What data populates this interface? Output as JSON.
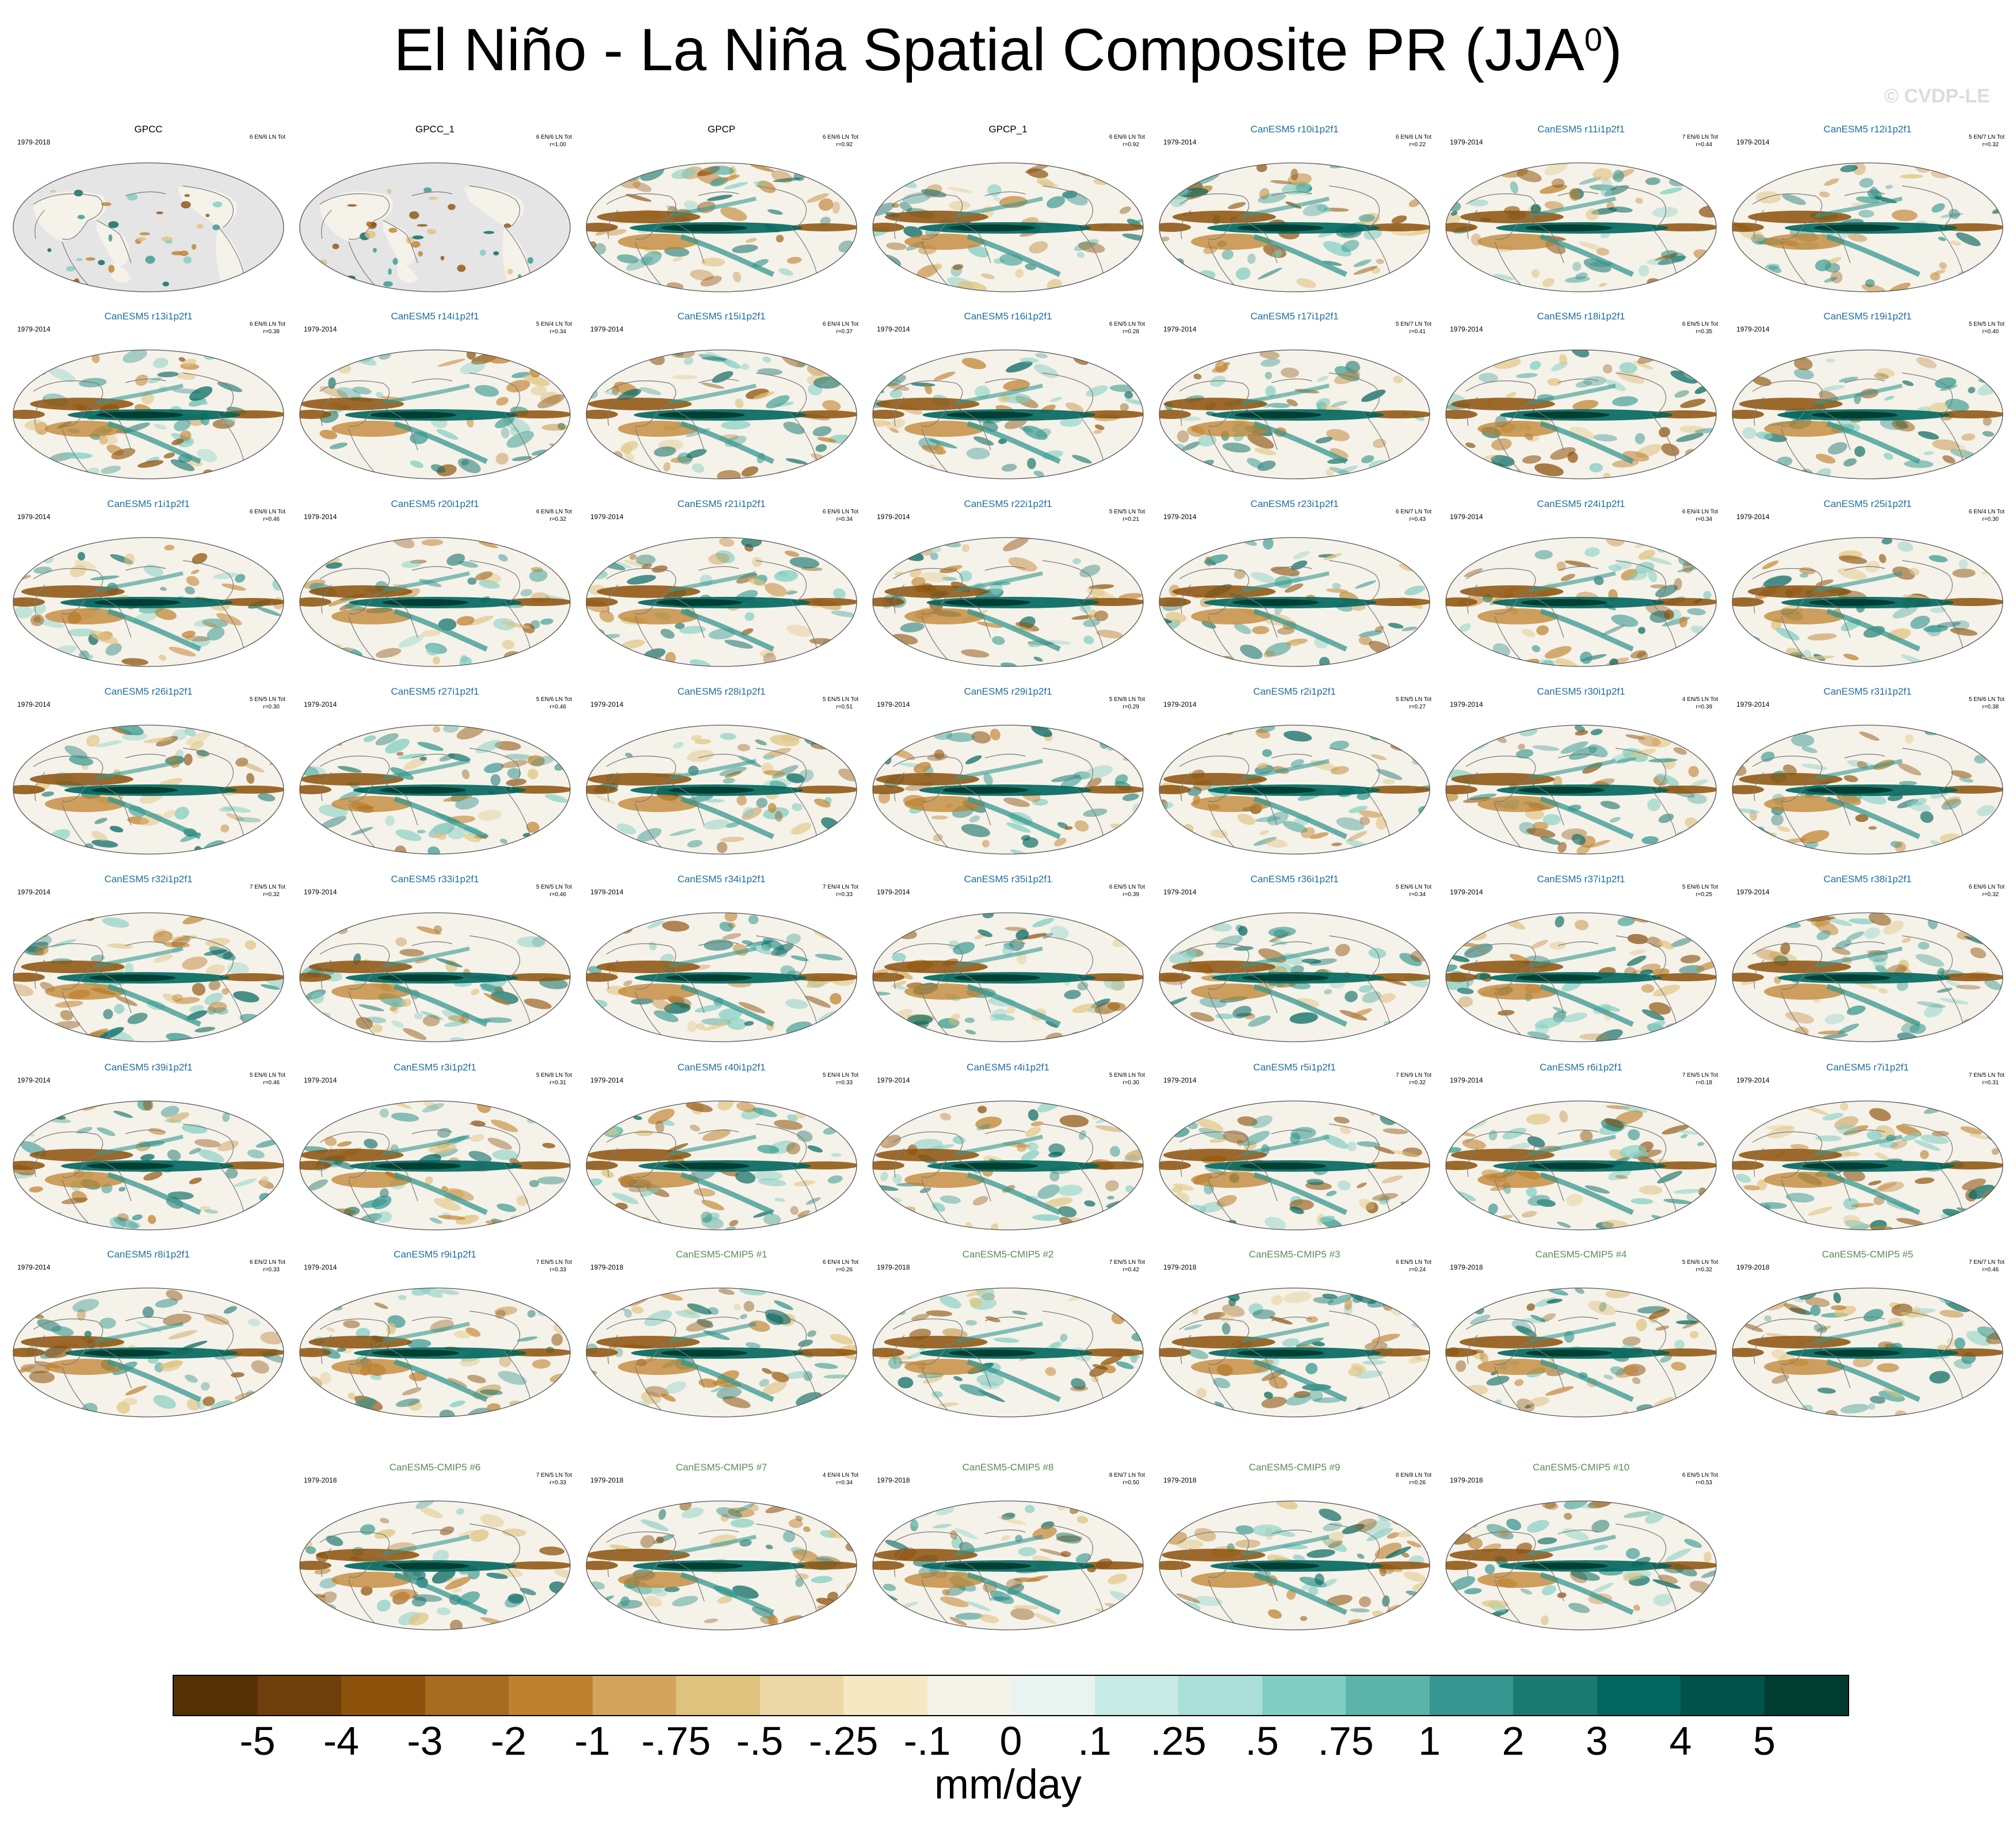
{
  "header": {
    "title": "El Niño - La Niña Spatial Composite PR (JJA",
    "title_sup": "0",
    "title_close": ")",
    "watermark": "© CVDP-LE"
  },
  "chart_data": {
    "type": "heatmap",
    "title": "El Niño - La Niña Spatial Composite PR (JJA0)",
    "units": "mm/day",
    "colorbar": {
      "labels": [
        "-5",
        "-4",
        "-3",
        "-2",
        "-1",
        "-.75",
        "-.5",
        "-.25",
        "-.1",
        "0",
        ".1",
        ".25",
        ".5",
        ".75",
        "1",
        "2",
        "3",
        "4",
        "5"
      ],
      "colors": [
        "#543005",
        "#6e3f0b",
        "#8c510a",
        "#a76b1f",
        "#bf812d",
        "#d2a45c",
        "#dfc27d",
        "#ecd8a6",
        "#f6e8c3",
        "#f5f2ea",
        "#e9f3f0",
        "#c7eae5",
        "#a9dfd7",
        "#80cdc1",
        "#5bb3a9",
        "#35978f",
        "#1a7a72",
        "#01665e",
        "#01524a",
        "#003c30"
      ]
    },
    "panels": [
      {
        "title": "GPCC",
        "period": "1979-2018",
        "counts": "6 EN/6 LN Tot",
        "corr": "",
        "kind": "obs",
        "land_only": true
      },
      {
        "title": "GPCC_1",
        "period": "",
        "counts": "6 EN/6 LN Tot",
        "corr": "r=1.00",
        "kind": "obs",
        "land_only": true
      },
      {
        "title": "GPCP",
        "period": "",
        "counts": "6 EN/6 LN Tot",
        "corr": "r=0.92",
        "kind": "obs",
        "land_only": false
      },
      {
        "title": "GPCP_1",
        "period": "",
        "counts": "6 EN/6 LN Tot",
        "corr": "r=0.92",
        "kind": "obs",
        "land_only": false
      },
      {
        "title": "CanESM5 r10i1p2f1",
        "period": "1979-2014",
        "counts": "6 EN/6 LN Tot",
        "corr": "r=0.22",
        "kind": "model"
      },
      {
        "title": "CanESM5 r11i1p2f1",
        "period": "1979-2014",
        "counts": "7 EN/6 LN Tot",
        "corr": "r=0.44",
        "kind": "model"
      },
      {
        "title": "CanESM5 r12i1p2f1",
        "period": "1979-2014",
        "counts": "5 EN/7 LN Tot",
        "corr": "r=0.32",
        "kind": "model"
      },
      {
        "title": "CanESM5 r13i1p2f1",
        "period": "1979-2014",
        "counts": "6 EN/6 LN Tot",
        "corr": "r=0.38",
        "kind": "model"
      },
      {
        "title": "CanESM5 r14i1p2f1",
        "period": "1979-2014",
        "counts": "5 EN/4 LN Tot",
        "corr": "r=0.34",
        "kind": "model"
      },
      {
        "title": "CanESM5 r15i1p2f1",
        "period": "1979-2014",
        "counts": "6 EN/4 LN Tot",
        "corr": "r=0.37",
        "kind": "model"
      },
      {
        "title": "CanESM5 r16i1p2f1",
        "period": "1979-2014",
        "counts": "6 EN/5 LN Tot",
        "corr": "r=0.28",
        "kind": "model"
      },
      {
        "title": "CanESM5 r17i1p2f1",
        "period": "1979-2014",
        "counts": "5 EN/7 LN Tot",
        "corr": "r=0.41",
        "kind": "model"
      },
      {
        "title": "CanESM5 r18i1p2f1",
        "period": "1979-2014",
        "counts": "6 EN/5 LN Tot",
        "corr": "r=0.35",
        "kind": "model"
      },
      {
        "title": "CanESM5 r19i1p2f1",
        "period": "1979-2014",
        "counts": "5 EN/5 LN Tot",
        "corr": "r=0.40",
        "kind": "model"
      },
      {
        "title": "CanESM5 r1i1p2f1",
        "period": "1979-2014",
        "counts": "6 EN/6 LN Tot",
        "corr": "r=0.46",
        "kind": "model"
      },
      {
        "title": "CanESM5 r20i1p2f1",
        "period": "1979-2014",
        "counts": "6 EN/8 LN Tot",
        "corr": "r=0.32",
        "kind": "model"
      },
      {
        "title": "CanESM5 r21i1p2f1",
        "period": "1979-2014",
        "counts": "6 EN/6 LN Tot",
        "corr": "r=0.34",
        "kind": "model"
      },
      {
        "title": "CanESM5 r22i1p2f1",
        "period": "1979-2014",
        "counts": "5 EN/5 LN Tot",
        "corr": "r=0.21",
        "kind": "model"
      },
      {
        "title": "CanESM5 r23i1p2f1",
        "period": "1979-2014",
        "counts": "6 EN/7 LN Tot",
        "corr": "r=0.43",
        "kind": "model"
      },
      {
        "title": "CanESM5 r24i1p2f1",
        "period": "1979-2014",
        "counts": "6 EN/4 LN Tot",
        "corr": "r=0.34",
        "kind": "model"
      },
      {
        "title": "CanESM5 r25i1p2f1",
        "period": "1979-2014",
        "counts": "6 EN/4 LN Tot",
        "corr": "r=0.30",
        "kind": "model"
      },
      {
        "title": "CanESM5 r26i1p2f1",
        "period": "1979-2014",
        "counts": "5 EN/5 LN Tot",
        "corr": "r=0.30",
        "kind": "model"
      },
      {
        "title": "CanESM5 r27i1p2f1",
        "period": "1979-2014",
        "counts": "5 EN/6 LN Tot",
        "corr": "r=0.46",
        "kind": "model"
      },
      {
        "title": "CanESM5 r28i1p2f1",
        "period": "1979-2014",
        "counts": "5 EN/5 LN Tot",
        "corr": "r=0.51",
        "kind": "model"
      },
      {
        "title": "CanESM5 r29i1p2f1",
        "period": "1979-2014",
        "counts": "5 EN/8 LN Tot",
        "corr": "r=0.29",
        "kind": "model"
      },
      {
        "title": "CanESM5 r2i1p2f1",
        "period": "1979-2014",
        "counts": "5 EN/5 LN Tot",
        "corr": "r=0.27",
        "kind": "model"
      },
      {
        "title": "CanESM5 r30i1p2f1",
        "period": "1979-2014",
        "counts": "4 EN/5 LN Tot",
        "corr": "r=0.39",
        "kind": "model"
      },
      {
        "title": "CanESM5 r31i1p2f1",
        "period": "1979-2014",
        "counts": "5 EN/6 LN Tot",
        "corr": "r=0.38",
        "kind": "model"
      },
      {
        "title": "CanESM5 r32i1p2f1",
        "period": "1979-2014",
        "counts": "7 EN/5 LN Tot",
        "corr": "r=0.32",
        "kind": "model"
      },
      {
        "title": "CanESM5 r33i1p2f1",
        "period": "1979-2014",
        "counts": "5 EN/5 LN Tot",
        "corr": "r=0.46",
        "kind": "model"
      },
      {
        "title": "CanESM5 r34i1p2f1",
        "period": "1979-2014",
        "counts": "7 EN/4 LN Tot",
        "corr": "r=0.33",
        "kind": "model"
      },
      {
        "title": "CanESM5 r35i1p2f1",
        "period": "1979-2014",
        "counts": "6 EN/5 LN Tot",
        "corr": "r=0.39",
        "kind": "model"
      },
      {
        "title": "CanESM5 r36i1p2f1",
        "period": "1979-2014",
        "counts": "5 EN/6 LN Tot",
        "corr": "r=0.34",
        "kind": "model"
      },
      {
        "title": "CanESM5 r37i1p2f1",
        "period": "1979-2014",
        "counts": "5 EN/6 LN Tot",
        "corr": "r=0.25",
        "kind": "model"
      },
      {
        "title": "CanESM5 r38i1p2f1",
        "period": "1979-2014",
        "counts": "6 EN/6 LN Tot",
        "corr": "r=0.32",
        "kind": "model"
      },
      {
        "title": "CanESM5 r39i1p2f1",
        "period": "1979-2014",
        "counts": "5 EN/6 LN Tot",
        "corr": "r=0.46",
        "kind": "model"
      },
      {
        "title": "CanESM5 r3i1p2f1",
        "period": "1979-2014",
        "counts": "5 EN/8 LN Tot",
        "corr": "r=0.31",
        "kind": "model"
      },
      {
        "title": "CanESM5 r40i1p2f1",
        "period": "1979-2014",
        "counts": "5 EN/4 LN Tot",
        "corr": "r=0.33",
        "kind": "model"
      },
      {
        "title": "CanESM5 r4i1p2f1",
        "period": "1979-2014",
        "counts": "5 EN/8 LN Tot",
        "corr": "r=0.30",
        "kind": "model"
      },
      {
        "title": "CanESM5 r5i1p2f1",
        "period": "1979-2014",
        "counts": "7 EN/9 LN Tot",
        "corr": "r=0.32",
        "kind": "model"
      },
      {
        "title": "CanESM5 r6i1p2f1",
        "period": "1979-2014",
        "counts": "7 EN/5 LN Tot",
        "corr": "r=0.18",
        "kind": "model"
      },
      {
        "title": "CanESM5 r7i1p2f1",
        "period": "1979-2014",
        "counts": "7 EN/5 LN Tot",
        "corr": "r=0.31",
        "kind": "model"
      },
      {
        "title": "CanESM5 r8i1p2f1",
        "period": "1979-2014",
        "counts": "6 EN/2 LN Tot",
        "corr": "r=0.33",
        "kind": "model"
      },
      {
        "title": "CanESM5 r9i1p2f1",
        "period": "1979-2014",
        "counts": "7 EN/5 LN Tot",
        "corr": "r=0.33",
        "kind": "model"
      },
      {
        "title": "CanESM5-CMIP5 #1",
        "period": "1979-2018",
        "counts": "6 EN/4 LN Tot",
        "corr": "r=0.26",
        "kind": "cmip5"
      },
      {
        "title": "CanESM5-CMIP5 #2",
        "period": "1979-2018",
        "counts": "7 EN/5 LN Tot",
        "corr": "r=0.42",
        "kind": "cmip5"
      },
      {
        "title": "CanESM5-CMIP5 #3",
        "period": "1979-2018",
        "counts": "6 EN/5 LN Tot",
        "corr": "r=0.24",
        "kind": "cmip5"
      },
      {
        "title": "CanESM5-CMIP5 #4",
        "period": "1979-2018",
        "counts": "5 EN/6 LN Tot",
        "corr": "r=0.32",
        "kind": "cmip5"
      },
      {
        "title": "CanESM5-CMIP5 #5",
        "period": "1979-2018",
        "counts": "7 EN/7 LN Tot",
        "corr": "r=0.46",
        "kind": "cmip5"
      },
      {
        "title": "CanESM5-CMIP5 #6",
        "period": "1979-2018",
        "counts": "7 EN/5 LN Tot",
        "corr": "r=0.33",
        "kind": "cmip5"
      },
      {
        "title": "CanESM5-CMIP5 #7",
        "period": "1979-2018",
        "counts": "4 EN/4 LN Tot",
        "corr": "r=0.34",
        "kind": "cmip5"
      },
      {
        "title": "CanESM5-CMIP5 #8",
        "period": "1979-2018",
        "counts": "8 EN/7 LN Tot",
        "corr": "r=0.50",
        "kind": "cmip5"
      },
      {
        "title": "CanESM5-CMIP5 #9",
        "period": "1979-2018",
        "counts": "8 EN/8 LN Tot",
        "corr": "r=0.26",
        "kind": "cmip5"
      },
      {
        "title": "CanESM5-CMIP5 #10",
        "period": "1979-2018",
        "counts": "6 EN/5 LN Tot",
        "corr": "r=0.53",
        "kind": "cmip5"
      }
    ]
  },
  "colors": {
    "obs_title": "#000000",
    "model_title": "#1f6e9e",
    "cmip5_title": "#5a8a5a",
    "land_mask": "#e5e5e5",
    "coastline": "#7a7a7a"
  }
}
